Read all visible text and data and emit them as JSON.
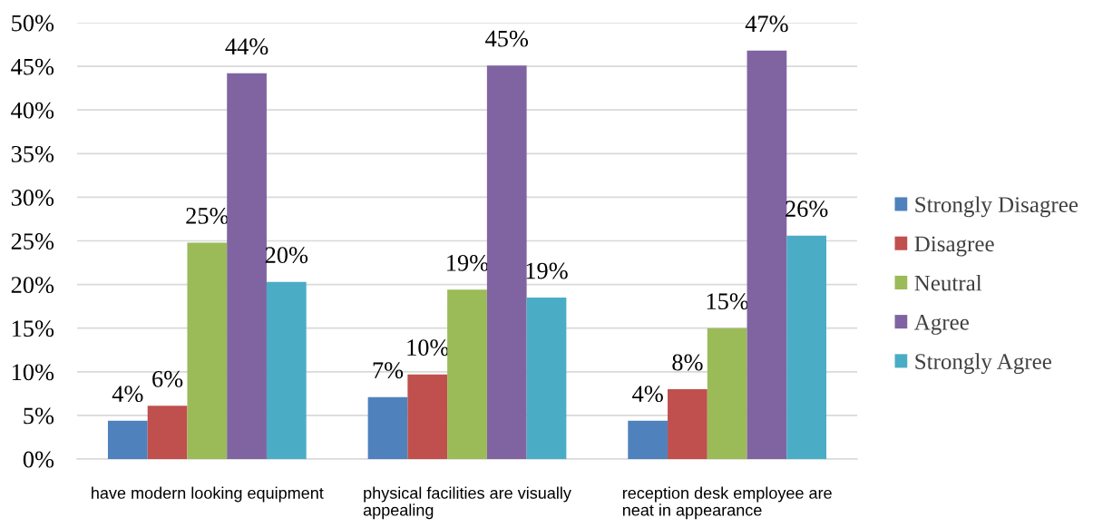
{
  "chart_data": {
    "type": "bar",
    "categories": [
      "have modern looking equipment",
      "physical facilities are visually appealing",
      "reception desk employee are neat in appearance"
    ],
    "series": [
      {
        "name": "Strongly Disagree",
        "color": "#4f81bd",
        "values": [
          4.4,
          7.1,
          4.4
        ],
        "value_labels": [
          "4%",
          "7%",
          "4%"
        ]
      },
      {
        "name": "Disagree",
        "color": "#c0504d",
        "values": [
          6.1,
          9.7,
          8.0
        ],
        "value_labels": [
          "6%",
          "10%",
          "8%"
        ]
      },
      {
        "name": "Neutral",
        "color": "#9bbb59",
        "values": [
          24.8,
          19.4,
          15.0
        ],
        "value_labels": [
          "25%",
          "19%",
          "15%"
        ]
      },
      {
        "name": "Agree",
        "color": "#8064a2",
        "values": [
          44.2,
          45.1,
          46.8
        ],
        "value_labels": [
          "44%",
          "45%",
          "47%"
        ]
      },
      {
        "name": "Strongly Agree",
        "color": "#4bacc6",
        "values": [
          20.3,
          18.5,
          25.6
        ],
        "value_labels": [
          "20%",
          "19%",
          "26%"
        ]
      }
    ],
    "ylim": [
      0,
      50
    ],
    "yticks": [
      {
        "value": 0,
        "label": "0%"
      },
      {
        "value": 5,
        "label": "5%"
      },
      {
        "value": 10,
        "label": "10%"
      },
      {
        "value": 15,
        "label": "15%"
      },
      {
        "value": 20,
        "label": "20%"
      },
      {
        "value": 25,
        "label": "25%"
      },
      {
        "value": 30,
        "label": "30%"
      },
      {
        "value": 35,
        "label": "35%"
      },
      {
        "value": 40,
        "label": "40%"
      },
      {
        "value": 45,
        "label": "45%"
      },
      {
        "value": 50,
        "label": "50%"
      }
    ],
    "grid": "y",
    "legend": "right"
  }
}
